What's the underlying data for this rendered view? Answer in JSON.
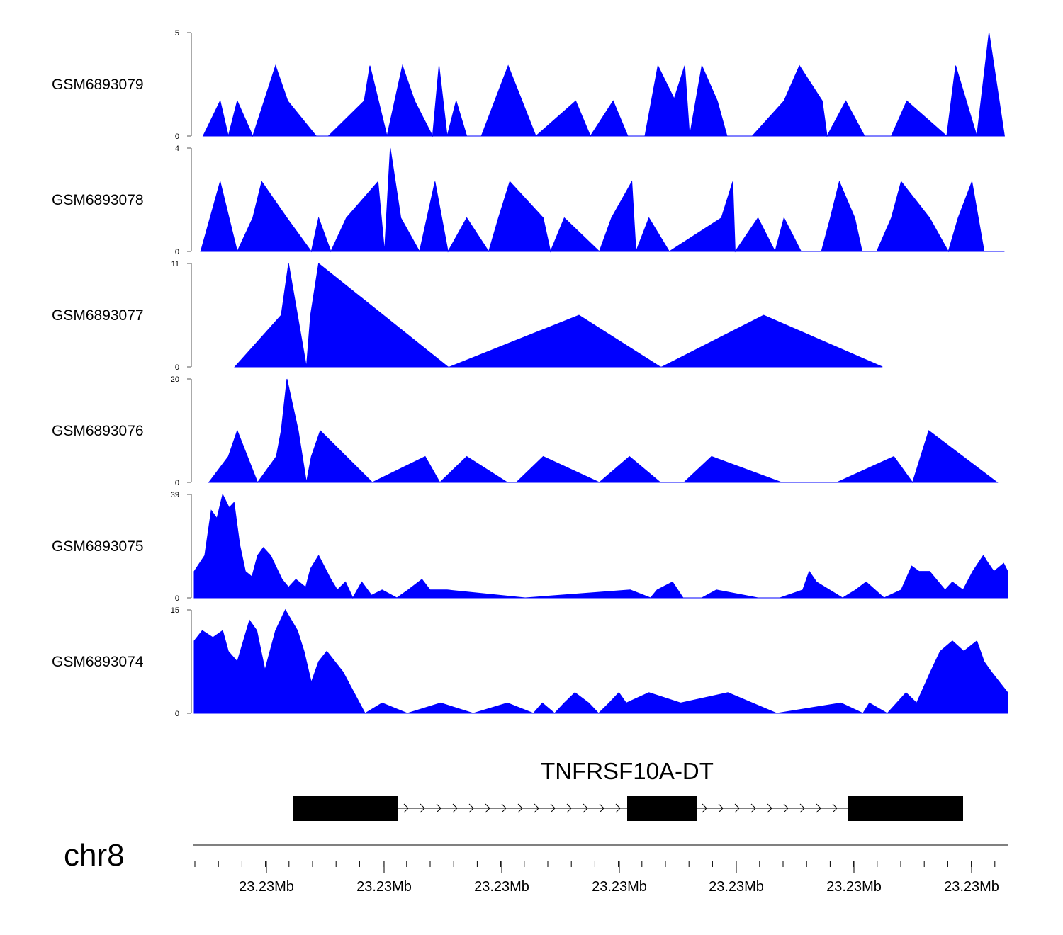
{
  "chart_data": {
    "type": "area",
    "title": "",
    "chromosome": "chr8",
    "genome_axis": {
      "coordinate_labels": [
        "23.23Mb",
        "23.23Mb",
        "23.23Mb",
        "23.23Mb",
        "23.23Mb",
        "23.23Mb",
        "23.23Mb"
      ]
    },
    "colors": {
      "signal": "#0000ff",
      "gene": "#000000"
    },
    "tracks": [
      {
        "name": "GSM6893079",
        "ylim": [
          0,
          5
        ],
        "ticks": [
          "0",
          "5"
        ],
        "x": [
          0.011,
          0.032,
          0.042,
          0.053,
          0.072,
          0.1,
          0.115,
          0.15,
          0.165,
          0.209,
          0.216,
          0.237,
          0.256,
          0.271,
          0.293,
          0.301,
          0.311,
          0.322,
          0.335,
          0.347,
          0.353,
          0.386,
          0.42,
          0.469,
          0.487,
          0.515,
          0.533,
          0.554,
          0.57,
          0.59,
          0.603,
          0.609,
          0.624,
          0.643,
          0.655,
          0.686,
          0.725,
          0.744,
          0.772,
          0.778,
          0.801,
          0.824,
          0.857,
          0.876,
          0.925,
          0.936,
          0.962,
          0.977,
          0.996
        ],
        "y": [
          0.0,
          1.7,
          0.0,
          1.7,
          0.0,
          3.4,
          1.7,
          0.0,
          0.0,
          1.7,
          3.4,
          0.0,
          3.4,
          1.7,
          0.0,
          3.4,
          0.0,
          1.7,
          0.0,
          0.0,
          0.0,
          3.4,
          0.0,
          1.7,
          0.0,
          1.7,
          0.0,
          0.0,
          3.4,
          1.8,
          3.4,
          0.0,
          3.4,
          1.7,
          0.0,
          0.0,
          1.7,
          3.4,
          1.7,
          0.0,
          1.7,
          0.0,
          0.0,
          1.7,
          0.0,
          3.4,
          0.0,
          5.0,
          0.0
        ]
      },
      {
        "name": "GSM6893078",
        "ylim": [
          0,
          4
        ],
        "ticks": [
          "0",
          "4"
        ],
        "x": [
          0.008,
          0.032,
          0.053,
          0.072,
          0.083,
          0.114,
          0.144,
          0.153,
          0.168,
          0.187,
          0.226,
          0.234,
          0.241,
          0.254,
          0.277,
          0.296,
          0.312,
          0.335,
          0.362,
          0.374,
          0.388,
          0.429,
          0.438,
          0.455,
          0.498,
          0.513,
          0.538,
          0.543,
          0.559,
          0.584,
          0.648,
          0.662,
          0.665,
          0.693,
          0.714,
          0.725,
          0.746,
          0.771,
          0.782,
          0.793,
          0.812,
          0.821,
          0.839,
          0.857,
          0.869,
          0.904,
          0.927,
          0.939,
          0.956,
          0.971,
          0.996
        ],
        "y": [
          0.0,
          2.7,
          0.0,
          1.3,
          2.7,
          1.3,
          0.0,
          1.3,
          0.0,
          1.3,
          2.7,
          0.0,
          4.0,
          1.3,
          0.0,
          2.7,
          0.0,
          1.3,
          0.0,
          1.3,
          2.7,
          1.3,
          0.0,
          1.3,
          0.0,
          1.3,
          2.7,
          0.0,
          1.3,
          0.0,
          1.3,
          2.7,
          0.0,
          1.3,
          0.0,
          1.3,
          0.0,
          0.0,
          1.3,
          2.7,
          1.3,
          0.0,
          0.0,
          1.3,
          2.7,
          1.3,
          0.0,
          1.3,
          2.7,
          0.0,
          0.0
        ]
      },
      {
        "name": "GSM6893077",
        "ylim": [
          0,
          11
        ],
        "ticks": [
          "0",
          "11"
        ],
        "x": [
          0.05,
          0.107,
          0.116,
          0.138,
          0.143,
          0.153,
          0.312,
          0.314,
          0.473,
          0.573,
          0.575,
          0.7,
          0.846
        ],
        "y": [
          0.0,
          5.5,
          11.0,
          0.0,
          5.5,
          11.0,
          0.0,
          0.0,
          5.5,
          0.0,
          0.0,
          5.5,
          0.0
        ],
        "fill_y": [
          0.0,
          5.5,
          11.0,
          0.0,
          5.5,
          11.0,
          0.0,
          0.0,
          5.5,
          0.0,
          0.0,
          5.5,
          0.0
        ]
      },
      {
        "name": "GSM6893076",
        "ylim": [
          0,
          20
        ],
        "ticks": [
          "0",
          "20"
        ],
        "x": [
          0.018,
          0.042,
          0.053,
          0.078,
          0.101,
          0.107,
          0.114,
          0.128,
          0.138,
          0.144,
          0.155,
          0.219,
          0.284,
          0.302,
          0.335,
          0.385,
          0.396,
          0.429,
          0.498,
          0.535,
          0.573,
          0.602,
          0.636,
          0.722,
          0.79,
          0.86,
          0.883,
          0.903,
          0.987
        ],
        "y": [
          0.0,
          5.0,
          10.0,
          0.0,
          5.0,
          10.0,
          20.0,
          10.0,
          0.0,
          5.0,
          10.0,
          0.0,
          5.0,
          0.0,
          5.0,
          0.0,
          0.0,
          5.0,
          0.0,
          5.0,
          0.0,
          0.0,
          5.0,
          0.0,
          0.0,
          5.0,
          0.0,
          10.0,
          0.0
        ]
      },
      {
        "name": "GSM6893075",
        "ylim": [
          0,
          39
        ],
        "ticks": [
          "0",
          "39"
        ],
        "x": [
          0.0,
          0.013,
          0.021,
          0.028,
          0.035,
          0.043,
          0.049,
          0.056,
          0.063,
          0.071,
          0.078,
          0.085,
          0.094,
          0.108,
          0.116,
          0.125,
          0.137,
          0.143,
          0.153,
          0.168,
          0.176,
          0.186,
          0.195,
          0.206,
          0.218,
          0.231,
          0.249,
          0.263,
          0.28,
          0.29,
          0.293,
          0.311,
          0.407,
          0.536,
          0.561,
          0.569,
          0.588,
          0.601,
          0.62,
          0.624,
          0.642,
          0.693,
          0.72,
          0.748,
          0.756,
          0.765,
          0.797,
          0.813,
          0.826,
          0.848,
          0.869,
          0.882,
          0.891,
          0.904,
          0.923,
          0.932,
          0.945,
          0.957,
          0.97,
          0.974,
          0.983,
          0.995,
          1.0
        ],
        "y": [
          10.0,
          16.0,
          33.0,
          30.0,
          39.0,
          34.0,
          36.0,
          20.0,
          10.0,
          8.0,
          16.0,
          19.0,
          16.0,
          7.0,
          4.0,
          7.0,
          4.0,
          11.0,
          16.0,
          7.0,
          3.0,
          6.0,
          0.0,
          6.0,
          1.0,
          3.0,
          0.0,
          3.0,
          7.0,
          3.0,
          3.0,
          3.0,
          0.0,
          3.0,
          0.0,
          3.0,
          6.0,
          0.0,
          0.0,
          0.0,
          3.0,
          0.0,
          0.0,
          3.0,
          10.0,
          6.0,
          0.0,
          3.0,
          6.0,
          0.0,
          3.0,
          12.0,
          10.0,
          10.0,
          3.0,
          6.0,
          3.0,
          10.0,
          16.0,
          14.0,
          10.0,
          13.0,
          10.0
        ]
      },
      {
        "name": "GSM6893074",
        "ylim": [
          0,
          15
        ],
        "ticks": [
          "0",
          "15"
        ],
        "x": [
          0.0,
          0.01,
          0.023,
          0.035,
          0.042,
          0.053,
          0.068,
          0.077,
          0.087,
          0.1,
          0.112,
          0.127,
          0.135,
          0.144,
          0.153,
          0.163,
          0.183,
          0.21,
          0.231,
          0.262,
          0.303,
          0.343,
          0.385,
          0.417,
          0.428,
          0.443,
          0.455,
          0.468,
          0.485,
          0.497,
          0.51,
          0.522,
          0.531,
          0.559,
          0.598,
          0.656,
          0.716,
          0.795,
          0.822,
          0.83,
          0.852,
          0.875,
          0.888,
          0.905,
          0.917,
          0.932,
          0.946,
          0.962,
          0.971,
          0.98,
          1.0
        ],
        "y": [
          10.5,
          12.0,
          11.0,
          12.0,
          9.0,
          7.5,
          13.5,
          12.0,
          6.3,
          12.0,
          15.0,
          12.0,
          9.0,
          4.5,
          7.5,
          9.0,
          6.0,
          0.0,
          1.5,
          0.0,
          1.5,
          0.0,
          1.5,
          0.0,
          1.5,
          0.0,
          1.5,
          3.0,
          1.5,
          0.0,
          1.5,
          3.0,
          1.5,
          3.0,
          1.5,
          3.0,
          0.0,
          1.5,
          0.0,
          1.5,
          0.0,
          3.0,
          1.5,
          6.0,
          9.0,
          10.5,
          9.0,
          10.5,
          7.5,
          6.0,
          3.0
        ]
      }
    ],
    "gene": {
      "name": "TNFRSF10A-DT",
      "strand": "+",
      "exons": 3
    }
  }
}
